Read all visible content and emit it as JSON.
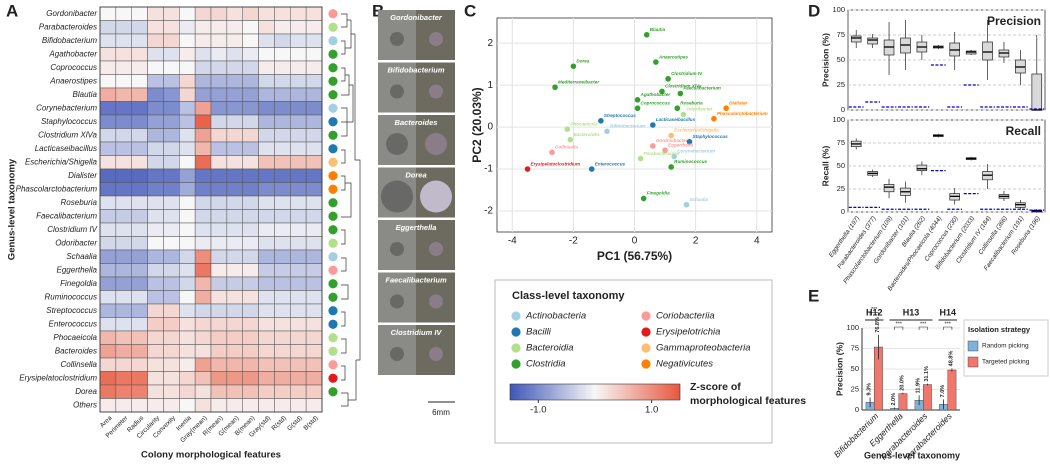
{
  "panel_labels": [
    "A",
    "B",
    "C",
    "D",
    "E"
  ],
  "image_panel": {
    "labels": [
      "Gordonibacter",
      "Bifidobacterium",
      "Bacteroides",
      "Dorea",
      "Eggerthella",
      "Faecalibacterium",
      "Clostridium IV"
    ],
    "scale_bar": "6mm"
  },
  "class_legend": {
    "title": "Class-level taxonomy",
    "classes": [
      {
        "name": "Actinobacteria",
        "color": "#a6cee3"
      },
      {
        "name": "Bacilli",
        "color": "#1f78b4"
      },
      {
        "name": "Bacteroidia",
        "color": "#b2df8a"
      },
      {
        "name": "Clostridia",
        "color": "#33a02c"
      },
      {
        "name": "Coriobacteriia",
        "color": "#fb9a99"
      },
      {
        "name": "Erysipelotrichia",
        "color": "#e31a1c"
      },
      {
        "name": "Gammaproteobacteria",
        "color": "#fdbf6f"
      },
      {
        "name": "Negativicutes",
        "color": "#ff7f00"
      }
    ]
  },
  "chart_data": [
    {
      "type": "heatmap",
      "xlabel": "Colony morphological features",
      "ylabel": "Genus-level taxonomy",
      "columns": [
        "Area",
        "Perimeter",
        "Radius",
        "Circularity",
        "Convexity",
        "Inertia",
        "Gray(mean)",
        "R(mean)",
        "G(mean)",
        "B(mean)",
        "Gray(std)",
        "R(std)",
        "G(std)",
        "B(std)"
      ],
      "rows": [
        "Gordonibacter",
        "Parabacteroides",
        "Bifidobacterium",
        "Agathobacter",
        "Coprococcus",
        "Anaerostipes",
        "Blautia",
        "Corynebacterium",
        "Staphylococcus",
        "Clostridium XlVa",
        "Lacticaseibacillus",
        "Escherichia/Shigella",
        "Dialister",
        "Phascolarctobacterium",
        "Roseburia",
        "Faecalibacterium",
        "Clostridium IV",
        "Odoribacter",
        "Schaalia",
        "Eggerthella",
        "Finegoldia",
        "Ruminococcus",
        "Streptococcus",
        "Enterococcus",
        "Phocaeicola",
        "Bacteroides",
        "Collinsella",
        "Erysipelatoclostridium",
        "Dorea",
        "Others"
      ],
      "row_colors": [
        "#fb9a99",
        "#b2df8a",
        "#a6cee3",
        "#33a02c",
        "#33a02c",
        "#33a02c",
        "#33a02c",
        "#a6cee3",
        "#1f78b4",
        "#33a02c",
        "#1f78b4",
        "#fdbf6f",
        "#ff7f00",
        "#ff7f00",
        "#33a02c",
        "#33a02c",
        "#33a02c",
        "#b2df8a",
        "#a6cee3",
        "#fb9a99",
        "#33a02c",
        "#33a02c",
        "#1f78b4",
        "#1f78b4",
        "#b2df8a",
        "#b2df8a",
        "#fb9a99",
        "#e31a1c",
        "#33a02c",
        null
      ],
      "values": [
        [
          0,
          0,
          0,
          0.2,
          0.2,
          0,
          0.3,
          0.3,
          0.2,
          0.3,
          0.2,
          0.2,
          0.2,
          0.2
        ],
        [
          -0.3,
          -0.3,
          -0.3,
          0.2,
          0.2,
          -0.1,
          0.1,
          0.1,
          0.1,
          0,
          0.2,
          0.1,
          0.1,
          0.1
        ],
        [
          -0.2,
          -0.2,
          -0.2,
          0.3,
          0.3,
          0,
          0.1,
          0.1,
          0.1,
          0,
          -0.2,
          -0.3,
          -0.2,
          -0.2
        ],
        [
          0.2,
          0.2,
          0.2,
          -0.2,
          -0.2,
          0.1,
          -0.2,
          -0.1,
          -0.2,
          -0.1,
          0,
          0,
          0,
          0
        ],
        [
          0.1,
          0.1,
          0.1,
          0,
          0,
          0,
          -0.3,
          -0.3,
          -0.3,
          -0.3,
          0.1,
          0.1,
          0.1,
          0.1
        ],
        [
          0,
          0,
          0,
          -0.5,
          -0.5,
          0.3,
          -0.6,
          -0.6,
          -0.6,
          -0.6,
          -0.3,
          -0.3,
          -0.3,
          -0.3
        ],
        [
          0.7,
          0.6,
          0.6,
          -1.0,
          -0.9,
          0.3,
          -0.8,
          -0.8,
          -0.8,
          -0.8,
          -0.6,
          -0.6,
          -0.6,
          -0.6
        ],
        [
          -1.2,
          -1.2,
          -1.2,
          -1.0,
          -1.0,
          -0.5,
          0.8,
          -0.9,
          -0.9,
          -0.9,
          -1.0,
          -1.0,
          -1.0,
          -1.0
        ],
        [
          -1.0,
          -1.0,
          -1.0,
          -0.8,
          -0.8,
          -0.5,
          1.4,
          -0.3,
          -0.3,
          -0.3,
          -0.6,
          -0.6,
          -0.6,
          -0.6
        ],
        [
          -0.3,
          -0.3,
          -0.3,
          -0.6,
          -0.6,
          -0.2,
          0.8,
          0.3,
          0.3,
          0.3,
          -0.3,
          -0.3,
          -0.3,
          -0.3
        ],
        [
          -0.5,
          -0.5,
          -0.5,
          -0.3,
          -0.3,
          -0.2,
          0.6,
          -0.5,
          -0.5,
          -0.5,
          -0.2,
          -0.2,
          -0.2,
          -0.2
        ],
        [
          0.2,
          0.2,
          0.2,
          -0.3,
          -0.3,
          0,
          1.3,
          0.2,
          0.2,
          0.2,
          0.5,
          0.5,
          0.5,
          0.5
        ],
        [
          -1.3,
          -1.3,
          -1.3,
          -1.2,
          -1.2,
          -0.8,
          -1.2,
          -1.2,
          -1.2,
          -1.2,
          -1.2,
          -1.2,
          -1.2,
          -1.2
        ],
        [
          -1.2,
          -1.2,
          -1.2,
          -1.1,
          -1.1,
          -0.7,
          -1.1,
          -1.1,
          -1.1,
          -1.1,
          -1.0,
          -1.0,
          -1.0,
          -1.0
        ],
        [
          -0.2,
          -0.2,
          -0.2,
          -0.2,
          -0.2,
          0,
          -0.3,
          -0.3,
          -0.3,
          -0.3,
          -0.2,
          -0.2,
          -0.2,
          -0.2
        ],
        [
          -0.4,
          -0.4,
          -0.4,
          -0.2,
          -0.2,
          0,
          -0.3,
          -0.3,
          -0.3,
          -0.3,
          -0.3,
          -0.3,
          -0.3,
          -0.3
        ],
        [
          -0.2,
          -0.2,
          -0.2,
          -0.1,
          -0.1,
          0,
          -0.2,
          -0.2,
          -0.2,
          -0.2,
          -0.1,
          -0.1,
          -0.1,
          -0.1
        ],
        [
          -0.3,
          -0.3,
          -0.3,
          0,
          0,
          0,
          -0.1,
          -0.1,
          -0.1,
          -0.1,
          -0.2,
          -0.2,
          -0.2,
          -0.2
        ],
        [
          -0.8,
          -0.8,
          -0.8,
          -0.6,
          -0.6,
          -0.3,
          1.0,
          -0.3,
          -0.3,
          -0.3,
          -0.6,
          -0.6,
          -0.6,
          -0.6
        ],
        [
          -0.6,
          -0.6,
          -0.6,
          -0.3,
          -0.3,
          -0.2,
          1.2,
          0.1,
          0.1,
          0.1,
          -0.4,
          -0.4,
          -0.4,
          -0.4
        ],
        [
          -0.8,
          -0.8,
          -0.8,
          -0.5,
          -0.5,
          -0.3,
          0.6,
          -0.4,
          -0.4,
          -0.4,
          -0.5,
          -0.5,
          -0.5,
          -0.5
        ],
        [
          -0.2,
          -0.2,
          -0.2,
          -0.5,
          -0.5,
          0,
          0.7,
          0.2,
          0.2,
          0.2,
          -0.2,
          -0.2,
          -0.2,
          -0.2
        ],
        [
          -0.6,
          -0.6,
          -0.6,
          0.3,
          0.3,
          -0.2,
          -0.3,
          -0.3,
          -0.3,
          -0.3,
          -0.2,
          -0.2,
          -0.2,
          -0.2
        ],
        [
          -0.2,
          -0.2,
          -0.2,
          0.4,
          0.4,
          0.2,
          0.3,
          0.3,
          0.3,
          0.3,
          0.2,
          0.2,
          0.2,
          0.2
        ],
        [
          0.6,
          0.5,
          0.5,
          0.3,
          0.3,
          0.2,
          0.3,
          0.4,
          0.4,
          0.4,
          0.3,
          0.3,
          0.3,
          0.3
        ],
        [
          0.8,
          0.7,
          0.7,
          0.3,
          0.3,
          0.2,
          0.2,
          0.4,
          0.4,
          0.4,
          0.3,
          0.3,
          0.3,
          0.3
        ],
        [
          0.3,
          0.3,
          0.3,
          0.2,
          0.2,
          0.1,
          0.8,
          0.6,
          0.6,
          0.6,
          0.5,
          0.5,
          0.5,
          0.5
        ],
        [
          1.3,
          1.2,
          1.2,
          0.2,
          0.2,
          0.3,
          0.5,
          0.9,
          0.9,
          0.9,
          0.7,
          0.7,
          0.7,
          0.7
        ],
        [
          1.2,
          1.1,
          1.1,
          0.2,
          0.2,
          0.3,
          0.2,
          0.5,
          0.5,
          0.5,
          0.4,
          0.4,
          0.4,
          0.4
        ],
        [
          0.1,
          0.1,
          0.1,
          0.1,
          0.1,
          0,
          0.2,
          0.1,
          0.1,
          0.1,
          0.1,
          0.1,
          0.1,
          0.1
        ]
      ],
      "colorbar": {
        "title": [
          "Z-score of",
          "morphological features"
        ],
        "lim": [
          -1.5,
          1.5
        ],
        "ticks": [
          {
            "value": -1,
            "label": "-1.0"
          },
          {
            "value": 1,
            "label": "1.0"
          }
        ],
        "colors": [
          "#3f56b8",
          "#f7f7f7",
          "#e8583e"
        ]
      }
    },
    {
      "type": "scatter",
      "xlabel": "PC1 (56.75%)",
      "ylabel": "PC2 (20.03%)",
      "xlim": [
        -4.5,
        4.5
      ],
      "ylim": [
        -2.5,
        2.6
      ],
      "xticks": [
        -4,
        -2,
        0,
        2,
        4
      ],
      "yticks": [
        -2,
        -1,
        0,
        1,
        2
      ],
      "grid": true,
      "labels": [
        "Blautia",
        "Dorea",
        "Anaerostipes",
        "Clostridium IV",
        "Clostridium XlVa",
        "Faecalibacterium",
        "Mediterraneibacter",
        "Agathobacter",
        "Coprococcus",
        "Roseburia",
        "Odoribacter",
        "Dialister",
        "Phascolarctobacterium",
        "Streptococcus",
        "Lacticaseibacillus",
        "Phocaeicola",
        "Bifidobacterium",
        "Bacteroides",
        "Escherichia/Shigella",
        "Staphylococcus",
        "Gordonibacter",
        "Eggerthella",
        "Corynebacterium",
        "Parabacteroides",
        "Collinsella",
        "Erysipelatoclostridium",
        "Enterococcus",
        "Ruminococcus",
        "Finegoldia",
        "Schaalia"
      ],
      "x": [
        0.4,
        -2.0,
        0.7,
        1.1,
        0.9,
        1.5,
        -2.6,
        0.1,
        0.1,
        1.4,
        1.6,
        3.0,
        2.6,
        -1.1,
        0.6,
        -2.2,
        -0.9,
        -2.1,
        1.2,
        1.8,
        0.6,
        1.0,
        1.3,
        0.2,
        -2.7,
        -3.5,
        -1.4,
        1.2,
        0.3,
        1.7
      ],
      "values": [
        2.2,
        1.45,
        1.55,
        1.15,
        0.85,
        0.8,
        0.95,
        0.65,
        0.45,
        0.45,
        0.3,
        0.45,
        0.2,
        0.15,
        0.05,
        -0.05,
        -0.1,
        -0.3,
        -0.2,
        -0.35,
        -0.45,
        -0.55,
        -0.7,
        -0.75,
        -0.6,
        -1.0,
        -1.0,
        -0.95,
        -1.7,
        -1.85
      ],
      "colors": [
        "#33a02c",
        "#33a02c",
        "#33a02c",
        "#33a02c",
        "#33a02c",
        "#33a02c",
        "#33a02c",
        "#33a02c",
        "#33a02c",
        "#33a02c",
        "#b2df8a",
        "#ff7f00",
        "#ff7f00",
        "#1f78b4",
        "#1f78b4",
        "#b2df8a",
        "#a6cee3",
        "#b2df8a",
        "#fdbf6f",
        "#1f78b4",
        "#fb9a99",
        "#fb9a99",
        "#a6cee3",
        "#b2df8a",
        "#fb9a99",
        "#e31a1c",
        "#1f78b4",
        "#33a02c",
        "#33a02c",
        "#a6cee3"
      ]
    },
    {
      "type": "box",
      "title": "Precision",
      "ylabel": "Precision (%)",
      "ylim": [
        0,
        100
      ],
      "yticks": [
        0,
        25,
        50,
        75,
        100
      ],
      "color": "#d9d9d9",
      "baseline_color": "#0000cc",
      "q1": [
        68,
        66,
        55,
        57,
        58,
        62,
        54,
        56,
        50,
        53,
        37,
        0
      ],
      "median": [
        72,
        70,
        63,
        65,
        63,
        63,
        60,
        58,
        58,
        57,
        43,
        0
      ],
      "q3": [
        74,
        72,
        70,
        72,
        68,
        64,
        67,
        59,
        68,
        60,
        50,
        36
      ],
      "whisker_low": [
        62,
        62,
        35,
        40,
        50,
        61,
        40,
        55,
        30,
        47,
        25,
        0
      ],
      "whisker_high": [
        80,
        76,
        88,
        90,
        75,
        65,
        78,
        60,
        90,
        68,
        60,
        75
      ],
      "baseline": [
        3,
        8,
        3,
        3,
        3,
        45,
        3,
        25,
        3,
        3,
        3,
        1
      ]
    },
    {
      "type": "box",
      "title": "Recall",
      "ylabel": "Recall (%)",
      "ylim": [
        0,
        100
      ],
      "yticks": [
        0,
        25,
        50,
        75,
        100
      ],
      "color": "#d9d9d9",
      "baseline_color": "#0000cc",
      "categories": [
        "Eggerthella (197)",
        "Parabacteroides (377)",
        "Phascolarctobacterium (109)",
        "Gordonibacter (101)",
        "Blautia (262)",
        "Bacteroides/Phocaeicola (4044)",
        "Coprococcus (230)",
        "Bifidobacterium (2033)",
        "Clostridium IV (184)",
        "Collinsella (366)",
        "Faecalibacterium (191)",
        "Roseburia (196)"
      ],
      "q1": [
        71,
        40,
        22,
        18,
        45,
        82,
        13,
        57,
        35,
        15,
        5,
        0
      ],
      "median": [
        74,
        42,
        27,
        22,
        47,
        83,
        17,
        58,
        40,
        17,
        8,
        1
      ],
      "q3": [
        77,
        44,
        30,
        26,
        51,
        84,
        20,
        59,
        44,
        19,
        10,
        2
      ],
      "whisker_low": [
        68,
        38,
        15,
        10,
        40,
        81,
        8,
        56,
        25,
        12,
        2,
        0
      ],
      "whisker_high": [
        80,
        46,
        36,
        33,
        55,
        85,
        26,
        60,
        52,
        23,
        13,
        3
      ],
      "baseline": [
        5,
        5,
        3,
        3,
        3,
        45,
        3,
        20,
        3,
        3,
        3,
        2
      ]
    },
    {
      "type": "bar",
      "ylabel": "Precision (%)",
      "xlabel": "Genus-level taxonomy",
      "ylim": [
        0,
        100
      ],
      "yticks": [
        0,
        25,
        50,
        75,
        100
      ],
      "legend_title": "Isolation strategy",
      "groups": [
        {
          "label": "H12",
          "categories": [
            "Bifidobacterium"
          ]
        },
        {
          "label": "H13",
          "categories": [
            "Eggerthella",
            "Parabacteroides"
          ]
        },
        {
          "label": "H14",
          "categories": [
            "Parabacteroides"
          ]
        }
      ],
      "series": [
        {
          "name": "Random picking",
          "color": "#7fb2d8",
          "values": [
            9.3,
            2.0,
            11.9,
            7.0
          ],
          "value_labels": [
            "9.3%",
            "2.0%",
            "11.9%",
            "7.0%"
          ],
          "errors": [
            6,
            1,
            6,
            6
          ]
        },
        {
          "name": "Targeted picking",
          "color": "#f0776c",
          "values": [
            76.8,
            20.0,
            31.1,
            48.8
          ],
          "value_labels": [
            "76.8%",
            "20.0%",
            "31.1%",
            "48.8%"
          ],
          "errors": [
            15,
            1,
            1,
            2
          ]
        }
      ],
      "significance": [
        "***",
        "***",
        "***",
        "***"
      ]
    }
  ]
}
